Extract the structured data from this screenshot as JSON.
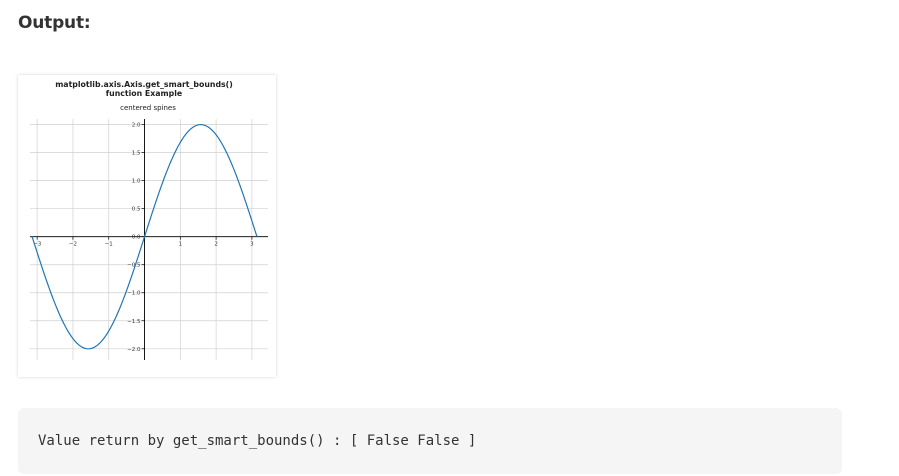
{
  "page": {
    "heading": "Output:",
    "console_output": "Value return by get_smart_bounds() : [ False False ]"
  },
  "chart_data": {
    "type": "line",
    "title_line1": "matplotlib.axis.Axis.get_smart_bounds()",
    "title_line2": "function Example",
    "subtitle": "centered spines",
    "xlabel": "",
    "ylabel": "",
    "function": "2*sin(x)",
    "xlim": [
      -3.2,
      3.45
    ],
    "ylim": [
      -2.2,
      2.1
    ],
    "x_ticks": [
      -3,
      -2,
      -1,
      0,
      1,
      2,
      3
    ],
    "x_tick_labels": [
      "-3",
      "-2",
      "-1",
      "",
      "1",
      "2",
      "3"
    ],
    "y_ticks": [
      -2.0,
      -1.5,
      -1.0,
      -0.5,
      0.0,
      0.5,
      1.0,
      1.5,
      2.0
    ],
    "y_tick_labels": [
      "-2.0",
      "-1.5",
      "-1.0",
      "-0.5",
      "0.0",
      "0.5",
      "1.0",
      "1.5",
      "2.0"
    ],
    "grid": true,
    "spines": "centered",
    "line_color": "#1f77b4",
    "grid_color": "#d0d0d0",
    "x": [
      -3.1416,
      -2.8274,
      -2.5133,
      -2.1991,
      -1.885,
      -1.5708,
      -1.2566,
      -0.9425,
      -0.6283,
      -0.3142,
      0.0,
      0.3142,
      0.6283,
      0.9425,
      1.2566,
      1.5708,
      1.885,
      2.1991,
      2.5133,
      2.8274,
      3.1416
    ],
    "y": [
      0.0,
      -0.618,
      -1.1756,
      -1.618,
      -1.9021,
      -2.0,
      -1.9021,
      -1.618,
      -1.1756,
      -0.618,
      0.0,
      0.618,
      1.1756,
      1.618,
      1.9021,
      2.0,
      1.9021,
      1.618,
      1.1756,
      0.618,
      0.0
    ]
  }
}
